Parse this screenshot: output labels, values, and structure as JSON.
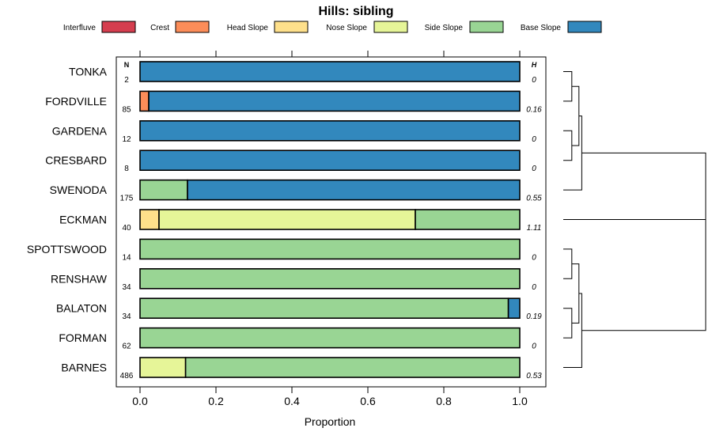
{
  "chart_data": {
    "type": "bar",
    "orientation": "horizontal",
    "stacked": true,
    "title": "Hills: sibling",
    "xlabel": "Proportion",
    "xlim": [
      -0.05,
      1.07
    ],
    "xticks": [
      "0.0",
      "0.2",
      "0.4",
      "0.6",
      "0.8",
      "1.0"
    ],
    "xtick_values": [
      0,
      0.2,
      0.4,
      0.6,
      0.8,
      1.0
    ],
    "n_header": "N",
    "h_header": "H",
    "legend_placement": "top",
    "series": [
      {
        "name": "Interfluve",
        "color": "#D53E4F"
      },
      {
        "name": "Crest",
        "color": "#FC8D59"
      },
      {
        "name": "Head Slope",
        "color": "#FEE08B"
      },
      {
        "name": "Nose Slope",
        "color": "#E6F598"
      },
      {
        "name": "Side Slope",
        "color": "#99D594"
      },
      {
        "name": "Base Slope",
        "color": "#3288BD"
      }
    ],
    "categories": [
      "TONKA",
      "FORDVILLE",
      "GARDENA",
      "CRESBARD",
      "SWENODA",
      "ECKMAN",
      "SPOTTSWOOD",
      "RENSHAW",
      "BALATON",
      "FORMAN",
      "BARNES"
    ],
    "n": [
      "2",
      "85",
      "12",
      "8",
      "175",
      "40",
      "14",
      "34",
      "34",
      "62",
      "486"
    ],
    "h": [
      "0",
      "0.16",
      "0",
      "0",
      "0.55",
      "1.11",
      "0",
      "0",
      "0.19",
      "0",
      "0.53"
    ],
    "proportions": [
      [
        0,
        0,
        0,
        0,
        0,
        1
      ],
      [
        0,
        0.023,
        0,
        0,
        0,
        0.977
      ],
      [
        0,
        0,
        0,
        0,
        0,
        1
      ],
      [
        0,
        0,
        0,
        0,
        0,
        1
      ],
      [
        0,
        0,
        0,
        0,
        0.125,
        0.875
      ],
      [
        0,
        0,
        0.05,
        0.675,
        0.275,
        0
      ],
      [
        0,
        0,
        0,
        0,
        1,
        0
      ],
      [
        0,
        0,
        0,
        0,
        1,
        0
      ],
      [
        0,
        0,
        0,
        0,
        0.97,
        0.03
      ],
      [
        0,
        0,
        0,
        0,
        1,
        0
      ],
      [
        0,
        0,
        0,
        0.12,
        0.88,
        0
      ]
    ],
    "dendrogram": {
      "type": "hierarchical-clustering",
      "leaf_order": [
        "TONKA",
        "FORDVILLE",
        "GARDENA",
        "CRESBARD",
        "SWENODA",
        "ECKMAN",
        "SPOTTSWOOD",
        "RENSHAW",
        "BALATON",
        "FORMAN",
        "BARNES"
      ],
      "merges": [
        {
          "left": "TONKA",
          "right": "FORDVILLE",
          "height": 0.06
        },
        {
          "left": "GARDENA",
          "right": "CRESBARD",
          "height": 0.06
        },
        {
          "left": "m0",
          "right": "m1",
          "height": 0.11
        },
        {
          "left": "m2",
          "right": "SWENODA",
          "height": 0.13
        },
        {
          "left": "SPOTTSWOOD",
          "right": "RENSHAW",
          "height": 0.06
        },
        {
          "left": "BALATON",
          "right": "FORMAN",
          "height": 0.06
        },
        {
          "left": "m4",
          "right": "m5",
          "height": 0.11
        },
        {
          "left": "m6",
          "right": "BARNES",
          "height": 0.13
        },
        {
          "left": "m7",
          "right": "m3",
          "height": 1.0
        }
      ],
      "root_includes_last": "ECKMAN"
    }
  }
}
